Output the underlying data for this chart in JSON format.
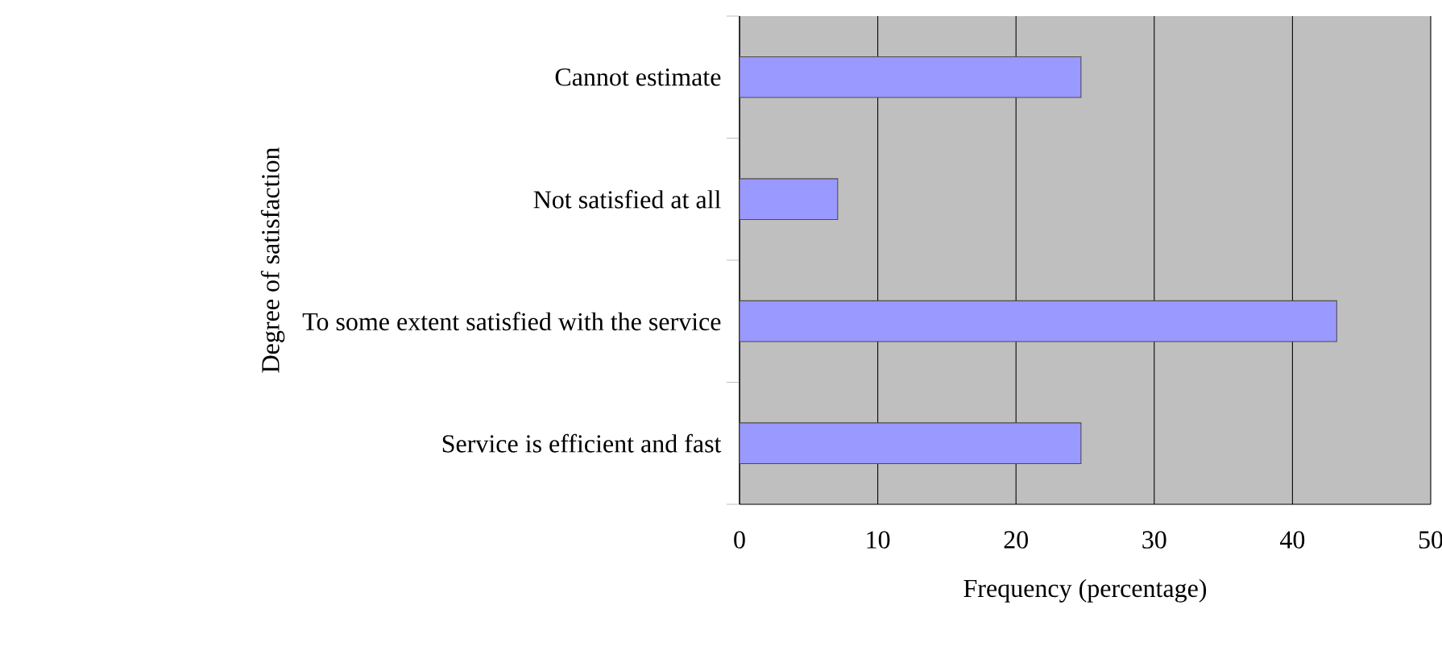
{
  "chart_data": {
    "type": "bar",
    "orientation": "horizontal",
    "categories": [
      "Cannot estimate",
      "Not satisfied at all",
      "To some extent satisfied with the service",
      "Service is efficient and fast"
    ],
    "values": [
      24.7,
      7.1,
      43.2,
      24.7
    ],
    "color": "#9999ff",
    "xlim": [
      0,
      50
    ],
    "xticks": [
      0,
      10,
      20,
      30,
      40,
      50
    ],
    "xlabel": "Frequency (percentage)",
    "ylabel": "Degree of satisfaction",
    "grid": "x"
  }
}
